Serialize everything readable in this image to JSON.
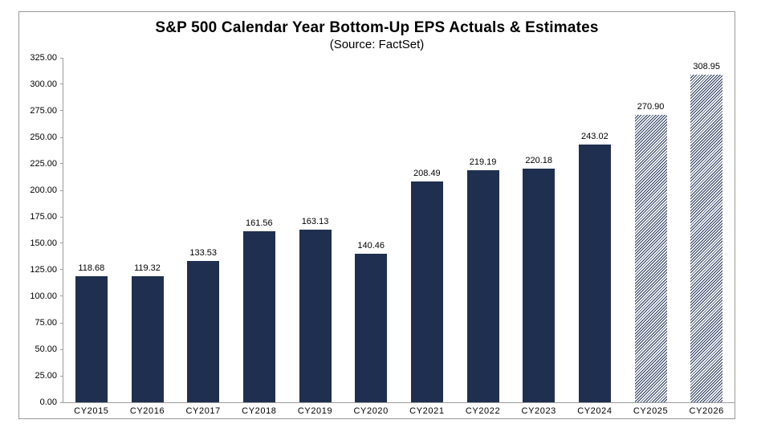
{
  "chart_data": {
    "type": "bar",
    "title": "S&P 500 Calendar Year Bottom-Up EPS Actuals & Estimates",
    "subtitle": "(Source: FactSet)",
    "categories": [
      "CY2015",
      "CY2016",
      "CY2017",
      "CY2018",
      "CY2019",
      "CY2020",
      "CY2021",
      "CY2022",
      "CY2023",
      "CY2024",
      "CY2025",
      "CY2026"
    ],
    "values": [
      118.68,
      119.32,
      133.53,
      161.56,
      163.13,
      140.46,
      208.49,
      219.19,
      220.18,
      243.02,
      270.9,
      308.95
    ],
    "value_labels": [
      "118.68",
      "119.32",
      "133.53",
      "161.56",
      "163.13",
      "140.46",
      "208.49",
      "219.19",
      "220.18",
      "243.02",
      "270.90",
      "308.95"
    ],
    "estimate_indices": [
      10,
      11
    ],
    "xlabel": "",
    "ylabel": "",
    "ylim": [
      0,
      325
    ],
    "ytick_step": 25,
    "ytick_labels": [
      "0.00",
      "25.00",
      "50.00",
      "75.00",
      "100.00",
      "125.00",
      "150.00",
      "175.00",
      "200.00",
      "225.00",
      "250.00",
      "275.00",
      "300.00",
      "325.00"
    ],
    "grid": false,
    "legend": "none",
    "colors": {
      "bar_fill": "#1f2f50",
      "estimate_hatch_line": "#24365a",
      "estimate_hatch_bg": "#ffffff",
      "axis_line": "#9c9c9c",
      "frame_border": "#999999",
      "label_text": "#000000"
    }
  }
}
